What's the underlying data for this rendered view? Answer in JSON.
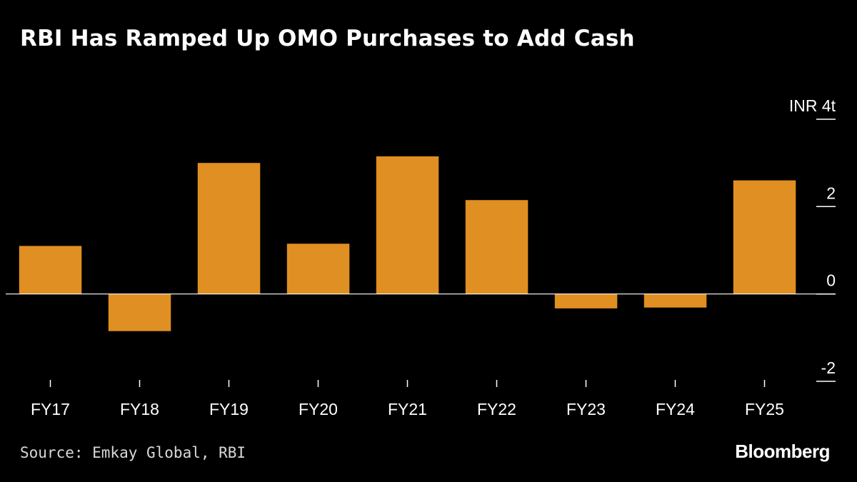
{
  "source": "Source: Emkay Global, RBI",
  "brand": "Bloomberg",
  "chart_data": {
    "type": "bar",
    "title": "RBI Has Ramped Up OMO Purchases to Add Cash",
    "xlabel": "",
    "ylabel": "",
    "unit_label": "INR",
    "categories": [
      "FY17",
      "FY18",
      "FY19",
      "FY20",
      "FY21",
      "FY22",
      "FY23",
      "FY24",
      "FY25"
    ],
    "values": [
      1.1,
      -0.85,
      3.0,
      1.15,
      3.15,
      2.15,
      -0.33,
      -0.31,
      2.6
    ],
    "ylim": [
      -2,
      4
    ],
    "yticks": [
      -2,
      0,
      2,
      4
    ],
    "ytick_labels": [
      "-2",
      "0",
      "2",
      "INR 4t"
    ],
    "grid": false,
    "legend": "none",
    "colors": {
      "bar": "#e08f22",
      "background": "#000000",
      "text": "#ffffff",
      "axis": "#ffffff"
    }
  }
}
